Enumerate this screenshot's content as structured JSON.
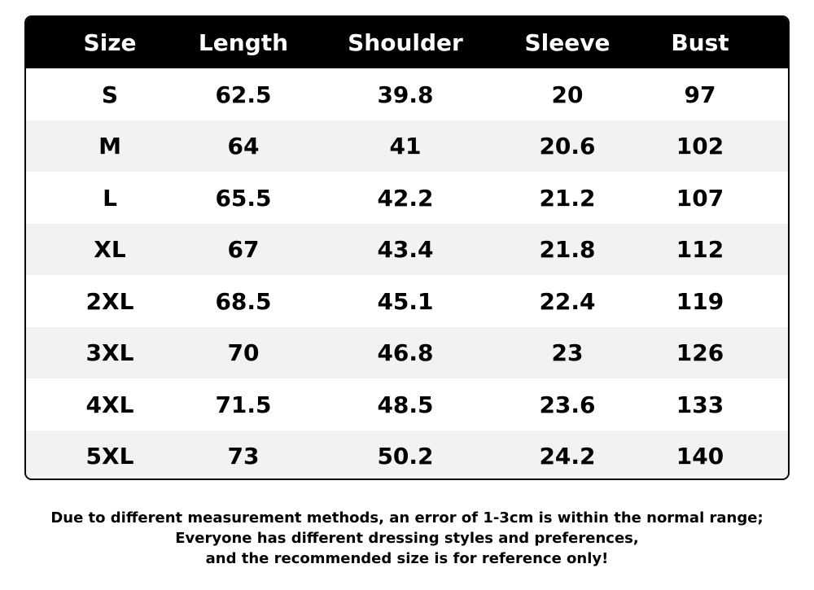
{
  "table": {
    "header": [
      "Size",
      "Length",
      "Shoulder",
      "Sleeve",
      "Bust"
    ],
    "rows": [
      [
        "S",
        "62.5",
        "39.8",
        "20",
        "97"
      ],
      [
        "M",
        "64",
        "41",
        "20.6",
        "102"
      ],
      [
        "L",
        "65.5",
        "42.2",
        "21.2",
        "107"
      ],
      [
        "XL",
        "67",
        "43.4",
        "21.8",
        "112"
      ],
      [
        "2XL",
        "68.5",
        "45.1",
        "22.4",
        "119"
      ],
      [
        "3XL",
        "70",
        "46.8",
        "23",
        "126"
      ],
      [
        "4XL",
        "71.5",
        "48.5",
        "23.6",
        "133"
      ],
      [
        "5XL",
        "73",
        "50.2",
        "24.2",
        "140"
      ]
    ]
  },
  "note": {
    "lines": [
      "Due to different measurement methods, an error of 1-3cm is within the normal range;",
      "Everyone has different dressing styles and preferences,",
      "and the recommended size is for reference only!"
    ]
  }
}
